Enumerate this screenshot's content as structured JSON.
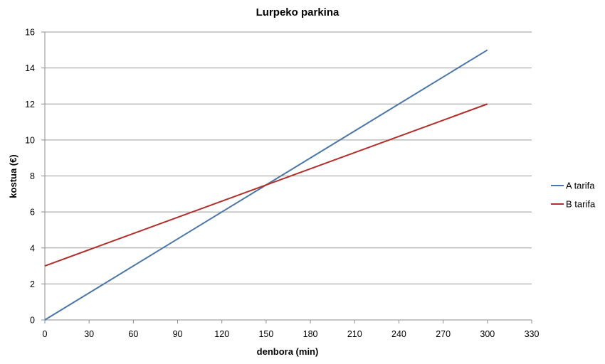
{
  "chart_data": {
    "type": "line",
    "title": "Lurpeko parkina",
    "xlabel": "denbora (min)",
    "ylabel": "kostua (€)",
    "xlim": [
      0,
      330
    ],
    "ylim": [
      0,
      16
    ],
    "x_ticks": [
      0,
      30,
      60,
      90,
      120,
      150,
      180,
      210,
      240,
      270,
      300,
      330
    ],
    "y_ticks": [
      0,
      2,
      4,
      6,
      8,
      10,
      12,
      14,
      16
    ],
    "grid": "horizontal",
    "legend_position": "right",
    "series": [
      {
        "name": "A tarifa",
        "color": "#4a76a8",
        "x": [
          0,
          300
        ],
        "y": [
          0,
          15
        ]
      },
      {
        "name": "B tarifa",
        "color": "#b1302b",
        "x": [
          0,
          300
        ],
        "y": [
          3,
          12
        ]
      }
    ]
  }
}
